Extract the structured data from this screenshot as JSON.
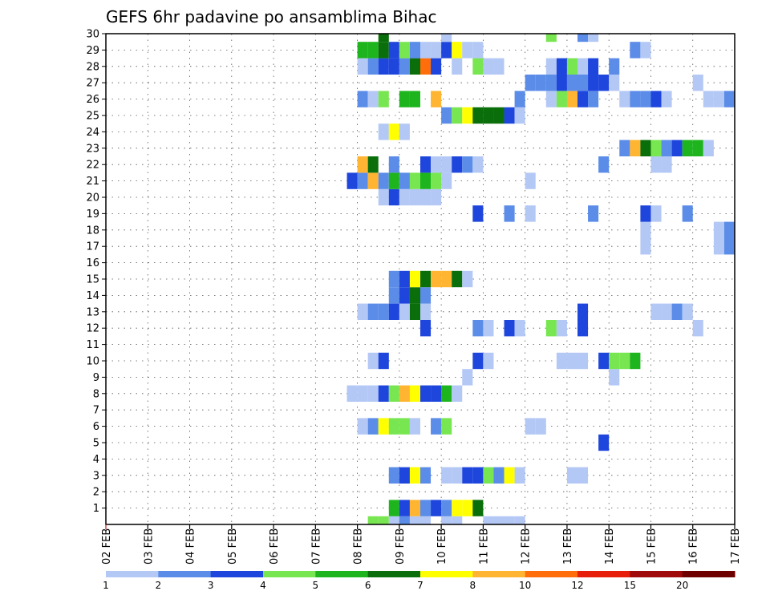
{
  "chart_data": {
    "type": "heatmap",
    "title": "GEFS 6hr padavine po ansamblima Bihac",
    "xlabel": "",
    "ylabel": "",
    "x_ticks": [
      "02 FEB",
      "03 FEB",
      "04 FEB",
      "05 FEB",
      "06 FEB",
      "07 FEB",
      "08 FEB",
      "09 FEB",
      "10 FEB",
      "11 FEB",
      "12 FEB",
      "13 FEB",
      "14 FEB",
      "15 FEB",
      "16 FEB",
      "17 FEB"
    ],
    "y_ticks": [
      "1",
      "2",
      "3",
      "4",
      "5",
      "6",
      "7",
      "8",
      "9",
      "10",
      "11",
      "12",
      "13",
      "14",
      "15",
      "16",
      "17",
      "18",
      "19",
      "20",
      "21",
      "22",
      "23",
      "24",
      "25",
      "26",
      "27",
      "28",
      "29",
      "30"
    ],
    "xlim": [
      "02 FEB",
      "17 FEB"
    ],
    "ylim": [
      0,
      30
    ],
    "grid": true,
    "x_step_hours": 6,
    "colorbar": {
      "labels": [
        "1",
        "2",
        "3",
        "4",
        "5",
        "6",
        "7",
        "8",
        "10",
        "12",
        "15",
        "20"
      ],
      "colors": [
        "#b4c8f5",
        "#5a8ce8",
        "#1e46dc",
        "#78e650",
        "#1eb41e",
        "#0a6e0a",
        "#ffff00",
        "#ffb432",
        "#ff6e0a",
        "#e61e0a",
        "#a00a0a",
        "#6e0000"
      ]
    },
    "points_note": "each cell: member y, date/time x (6-h step), precipitation class index into colorbar.colors",
    "cells": [
      [
        "08 FEB 06Z",
        0,
        3
      ],
      [
        "08 FEB 12Z",
        0,
        3
      ],
      [
        "08 FEB 18Z",
        0,
        0
      ],
      [
        "09 FEB 00Z",
        0,
        1
      ],
      [
        "09 FEB 06Z",
        0,
        0
      ],
      [
        "09 FEB 12Z",
        0,
        0
      ],
      [
        "10 FEB 00Z",
        0,
        0
      ],
      [
        "10 FEB 06Z",
        0,
        0
      ],
      [
        "11 FEB 00Z",
        0,
        0
      ],
      [
        "11 FEB 06Z",
        0,
        0
      ],
      [
        "11 FEB 12Z",
        0,
        0
      ],
      [
        "11 FEB 18Z",
        0,
        0
      ],
      [
        "08 FEB 18Z",
        1,
        4
      ],
      [
        "09 FEB 00Z",
        1,
        2
      ],
      [
        "09 FEB 06Z",
        1,
        7
      ],
      [
        "09 FEB 12Z",
        1,
        1
      ],
      [
        "09 FEB 18Z",
        1,
        2
      ],
      [
        "10 FEB 00Z",
        1,
        1
      ],
      [
        "10 FEB 06Z",
        1,
        6
      ],
      [
        "10 FEB 12Z",
        1,
        6
      ],
      [
        "10 FEB 18Z",
        1,
        5
      ],
      [
        "08 FEB 18Z",
        3,
        1
      ],
      [
        "09 FEB 00Z",
        3,
        2
      ],
      [
        "09 FEB 06Z",
        3,
        6
      ],
      [
        "09 FEB 12Z",
        3,
        1
      ],
      [
        "10 FEB 00Z",
        3,
        0
      ],
      [
        "10 FEB 06Z",
        3,
        0
      ],
      [
        "10 FEB 12Z",
        3,
        2
      ],
      [
        "10 FEB 18Z",
        3,
        2
      ],
      [
        "11 FEB 00Z",
        3,
        3
      ],
      [
        "11 FEB 06Z",
        3,
        1
      ],
      [
        "11 FEB 12Z",
        3,
        6
      ],
      [
        "11 FEB 18Z",
        3,
        0
      ],
      [
        "13 FEB 00Z",
        3,
        0
      ],
      [
        "13 FEB 06Z",
        3,
        0
      ],
      [
        "13 FEB 18Z",
        5,
        2
      ],
      [
        "08 FEB 00Z",
        6,
        0
      ],
      [
        "08 FEB 06Z",
        6,
        1
      ],
      [
        "08 FEB 12Z",
        6,
        6
      ],
      [
        "08 FEB 18Z",
        6,
        3
      ],
      [
        "09 FEB 00Z",
        6,
        3
      ],
      [
        "09 FEB 06Z",
        6,
        0
      ],
      [
        "09 FEB 18Z",
        6,
        1
      ],
      [
        "10 FEB 00Z",
        6,
        3
      ],
      [
        "12 FEB 00Z",
        6,
        0
      ],
      [
        "12 FEB 06Z",
        6,
        0
      ],
      [
        "07 FEB 18Z",
        8,
        0
      ],
      [
        "08 FEB 00Z",
        8,
        0
      ],
      [
        "08 FEB 06Z",
        8,
        0
      ],
      [
        "08 FEB 12Z",
        8,
        2
      ],
      [
        "08 FEB 18Z",
        8,
        3
      ],
      [
        "09 FEB 00Z",
        8,
        7
      ],
      [
        "09 FEB 06Z",
        8,
        6
      ],
      [
        "09 FEB 12Z",
        8,
        2
      ],
      [
        "09 FEB 18Z",
        8,
        2
      ],
      [
        "10 FEB 00Z",
        8,
        4
      ],
      [
        "10 FEB 06Z",
        8,
        0
      ],
      [
        "10 FEB 12Z",
        9,
        0
      ],
      [
        "14 FEB 00Z",
        9,
        0
      ],
      [
        "08 FEB 06Z",
        10,
        0
      ],
      [
        "08 FEB 12Z",
        10,
        2
      ],
      [
        "10 FEB 18Z",
        10,
        2
      ],
      [
        "11 FEB 00Z",
        10,
        0
      ],
      [
        "12 FEB 18Z",
        10,
        0
      ],
      [
        "13 FEB 00Z",
        10,
        0
      ],
      [
        "13 FEB 06Z",
        10,
        0
      ],
      [
        "13 FEB 18Z",
        10,
        2
      ],
      [
        "14 FEB 00Z",
        10,
        3
      ],
      [
        "14 FEB 06Z",
        10,
        3
      ],
      [
        "14 FEB 12Z",
        10,
        4
      ],
      [
        "09 FEB 12Z",
        12,
        2
      ],
      [
        "10 FEB 18Z",
        12,
        1
      ],
      [
        "11 FEB 00Z",
        12,
        0
      ],
      [
        "11 FEB 12Z",
        12,
        2
      ],
      [
        "11 FEB 18Z",
        12,
        0
      ],
      [
        "12 FEB 12Z",
        12,
        3
      ],
      [
        "12 FEB 18Z",
        12,
        0
      ],
      [
        "13 FEB 06Z",
        12,
        2
      ],
      [
        "16 FEB 00Z",
        12,
        0
      ],
      [
        "08 FEB 00Z",
        13,
        0
      ],
      [
        "08 FEB 06Z",
        13,
        1
      ],
      [
        "08 FEB 12Z",
        13,
        1
      ],
      [
        "08 FEB 18Z",
        13,
        2
      ],
      [
        "09 FEB 00Z",
        13,
        0
      ],
      [
        "09 FEB 06Z",
        13,
        5
      ],
      [
        "09 FEB 12Z",
        13,
        0
      ],
      [
        "13 FEB 06Z",
        13,
        2
      ],
      [
        "15 FEB 00Z",
        13,
        0
      ],
      [
        "15 FEB 06Z",
        13,
        0
      ],
      [
        "15 FEB 12Z",
        13,
        1
      ],
      [
        "15 FEB 18Z",
        13,
        0
      ],
      [
        "08 FEB 18Z",
        14,
        1
      ],
      [
        "09 FEB 00Z",
        14,
        2
      ],
      [
        "09 FEB 06Z",
        14,
        5
      ],
      [
        "09 FEB 12Z",
        14,
        1
      ],
      [
        "08 FEB 18Z",
        15,
        1
      ],
      [
        "09 FEB 00Z",
        15,
        2
      ],
      [
        "09 FEB 06Z",
        15,
        6
      ],
      [
        "09 FEB 12Z",
        15,
        5
      ],
      [
        "09 FEB 18Z",
        15,
        7
      ],
      [
        "10 FEB 00Z",
        15,
        7
      ],
      [
        "10 FEB 06Z",
        15,
        5
      ],
      [
        "10 FEB 12Z",
        15,
        0
      ],
      [
        "14 FEB 18Z",
        17,
        0
      ],
      [
        "16 FEB 12Z",
        17,
        0
      ],
      [
        "16 FEB 18Z",
        17,
        1
      ],
      [
        "14 FEB 18Z",
        18,
        0
      ],
      [
        "16 FEB 12Z",
        18,
        0
      ],
      [
        "16 FEB 18Z",
        18,
        1
      ],
      [
        "10 FEB 18Z",
        19,
        2
      ],
      [
        "11 FEB 12Z",
        19,
        1
      ],
      [
        "12 FEB 00Z",
        19,
        0
      ],
      [
        "13 FEB 12Z",
        19,
        1
      ],
      [
        "14 FEB 18Z",
        19,
        2
      ],
      [
        "15 FEB 00Z",
        19,
        0
      ],
      [
        "15 FEB 18Z",
        19,
        1
      ],
      [
        "08 FEB 12Z",
        20,
        0
      ],
      [
        "08 FEB 18Z",
        20,
        2
      ],
      [
        "09 FEB 00Z",
        20,
        0
      ],
      [
        "09 FEB 06Z",
        20,
        0
      ],
      [
        "09 FEB 12Z",
        20,
        0
      ],
      [
        "09 FEB 18Z",
        20,
        0
      ],
      [
        "07 FEB 18Z",
        21,
        2
      ],
      [
        "08 FEB 00Z",
        21,
        1
      ],
      [
        "08 FEB 06Z",
        21,
        7
      ],
      [
        "08 FEB 12Z",
        21,
        1
      ],
      [
        "08 FEB 18Z",
        21,
        4
      ],
      [
        "09 FEB 00Z",
        21,
        1
      ],
      [
        "09 FEB 06Z",
        21,
        3
      ],
      [
        "09 FEB 12Z",
        21,
        4
      ],
      [
        "09 FEB 18Z",
        21,
        3
      ],
      [
        "10 FEB 00Z",
        21,
        0
      ],
      [
        "12 FEB 00Z",
        21,
        0
      ],
      [
        "08 FEB 00Z",
        22,
        7
      ],
      [
        "08 FEB 06Z",
        22,
        5
      ],
      [
        "08 FEB 18Z",
        22,
        1
      ],
      [
        "09 FEB 12Z",
        22,
        2
      ],
      [
        "09 FEB 18Z",
        22,
        0
      ],
      [
        "10 FEB 00Z",
        22,
        0
      ],
      [
        "10 FEB 06Z",
        22,
        2
      ],
      [
        "10 FEB 12Z",
        22,
        1
      ],
      [
        "10 FEB 18Z",
        22,
        0
      ],
      [
        "13 FEB 18Z",
        22,
        1
      ],
      [
        "15 FEB 00Z",
        22,
        0
      ],
      [
        "15 FEB 06Z",
        22,
        0
      ],
      [
        "14 FEB 06Z",
        23,
        1
      ],
      [
        "14 FEB 12Z",
        23,
        7
      ],
      [
        "14 FEB 18Z",
        23,
        5
      ],
      [
        "15 FEB 00Z",
        23,
        3
      ],
      [
        "15 FEB 06Z",
        23,
        1
      ],
      [
        "15 FEB 12Z",
        23,
        2
      ],
      [
        "15 FEB 18Z",
        23,
        4
      ],
      [
        "16 FEB 00Z",
        23,
        4
      ],
      [
        "16 FEB 06Z",
        23,
        0
      ],
      [
        "08 FEB 12Z",
        24,
        0
      ],
      [
        "08 FEB 18Z",
        24,
        6
      ],
      [
        "09 FEB 00Z",
        24,
        0
      ],
      [
        "10 FEB 00Z",
        25,
        1
      ],
      [
        "10 FEB 06Z",
        25,
        3
      ],
      [
        "10 FEB 12Z",
        25,
        6
      ],
      [
        "10 FEB 18Z",
        25,
        5
      ],
      [
        "11 FEB 00Z",
        25,
        5
      ],
      [
        "11 FEB 06Z",
        25,
        5
      ],
      [
        "11 FEB 12Z",
        25,
        2
      ],
      [
        "11 FEB 18Z",
        25,
        0
      ],
      [
        "08 FEB 00Z",
        26,
        1
      ],
      [
        "08 FEB 06Z",
        26,
        0
      ],
      [
        "08 FEB 12Z",
        26,
        3
      ],
      [
        "09 FEB 00Z",
        26,
        4
      ],
      [
        "09 FEB 06Z",
        26,
        4
      ],
      [
        "09 FEB 18Z",
        26,
        7
      ],
      [
        "11 FEB 18Z",
        26,
        1
      ],
      [
        "12 FEB 12Z",
        26,
        0
      ],
      [
        "12 FEB 18Z",
        26,
        3
      ],
      [
        "13 FEB 00Z",
        26,
        7
      ],
      [
        "13 FEB 06Z",
        26,
        2
      ],
      [
        "13 FEB 12Z",
        26,
        1
      ],
      [
        "14 FEB 06Z",
        26,
        0
      ],
      [
        "14 FEB 12Z",
        26,
        1
      ],
      [
        "14 FEB 18Z",
        26,
        1
      ],
      [
        "15 FEB 00Z",
        26,
        2
      ],
      [
        "15 FEB 06Z",
        26,
        0
      ],
      [
        "16 FEB 06Z",
        26,
        0
      ],
      [
        "16 FEB 12Z",
        26,
        0
      ],
      [
        "16 FEB 18Z",
        26,
        1
      ],
      [
        "12 FEB 00Z",
        27,
        1
      ],
      [
        "12 FEB 06Z",
        27,
        1
      ],
      [
        "12 FEB 12Z",
        27,
        1
      ],
      [
        "12 FEB 18Z",
        27,
        2
      ],
      [
        "13 FEB 00Z",
        27,
        1
      ],
      [
        "13 FEB 06Z",
        27,
        1
      ],
      [
        "13 FEB 12Z",
        27,
        2
      ],
      [
        "13 FEB 18Z",
        27,
        2
      ],
      [
        "14 FEB 00Z",
        27,
        0
      ],
      [
        "16 FEB 00Z",
        27,
        0
      ],
      [
        "08 FEB 00Z",
        28,
        0
      ],
      [
        "08 FEB 06Z",
        28,
        1
      ],
      [
        "08 FEB 12Z",
        28,
        2
      ],
      [
        "08 FEB 18Z",
        28,
        2
      ],
      [
        "09 FEB 00Z",
        28,
        1
      ],
      [
        "09 FEB 06Z",
        28,
        5
      ],
      [
        "09 FEB 12Z",
        28,
        8
      ],
      [
        "09 FEB 18Z",
        28,
        2
      ],
      [
        "10 FEB 06Z",
        28,
        0
      ],
      [
        "10 FEB 18Z",
        28,
        3
      ],
      [
        "11 FEB 00Z",
        28,
        0
      ],
      [
        "11 FEB 06Z",
        28,
        0
      ],
      [
        "12 FEB 12Z",
        28,
        0
      ],
      [
        "12 FEB 18Z",
        28,
        2
      ],
      [
        "13 FEB 00Z",
        28,
        3
      ],
      [
        "13 FEB 06Z",
        28,
        0
      ],
      [
        "13 FEB 12Z",
        28,
        2
      ],
      [
        "14 FEB 00Z",
        28,
        1
      ],
      [
        "08 FEB 00Z",
        29,
        4
      ],
      [
        "08 FEB 06Z",
        29,
        4
      ],
      [
        "08 FEB 12Z",
        29,
        5
      ],
      [
        "08 FEB 18Z",
        29,
        2
      ],
      [
        "09 FEB 00Z",
        29,
        3
      ],
      [
        "09 FEB 06Z",
        29,
        1
      ],
      [
        "09 FEB 12Z",
        29,
        0
      ],
      [
        "09 FEB 18Z",
        29,
        0
      ],
      [
        "10 FEB 00Z",
        29,
        2
      ],
      [
        "10 FEB 06Z",
        29,
        6
      ],
      [
        "10 FEB 12Z",
        29,
        0
      ],
      [
        "10 FEB 18Z",
        29,
        0
      ],
      [
        "14 FEB 12Z",
        29,
        1
      ],
      [
        "14 FEB 18Z",
        29,
        0
      ],
      [
        "08 FEB 12Z",
        30,
        5
      ],
      [
        "10 FEB 00Z",
        30,
        0
      ],
      [
        "12 FEB 12Z",
        30,
        3
      ],
      [
        "13 FEB 06Z",
        30,
        1
      ],
      [
        "13 FEB 12Z",
        30,
        0
      ]
    ]
  }
}
